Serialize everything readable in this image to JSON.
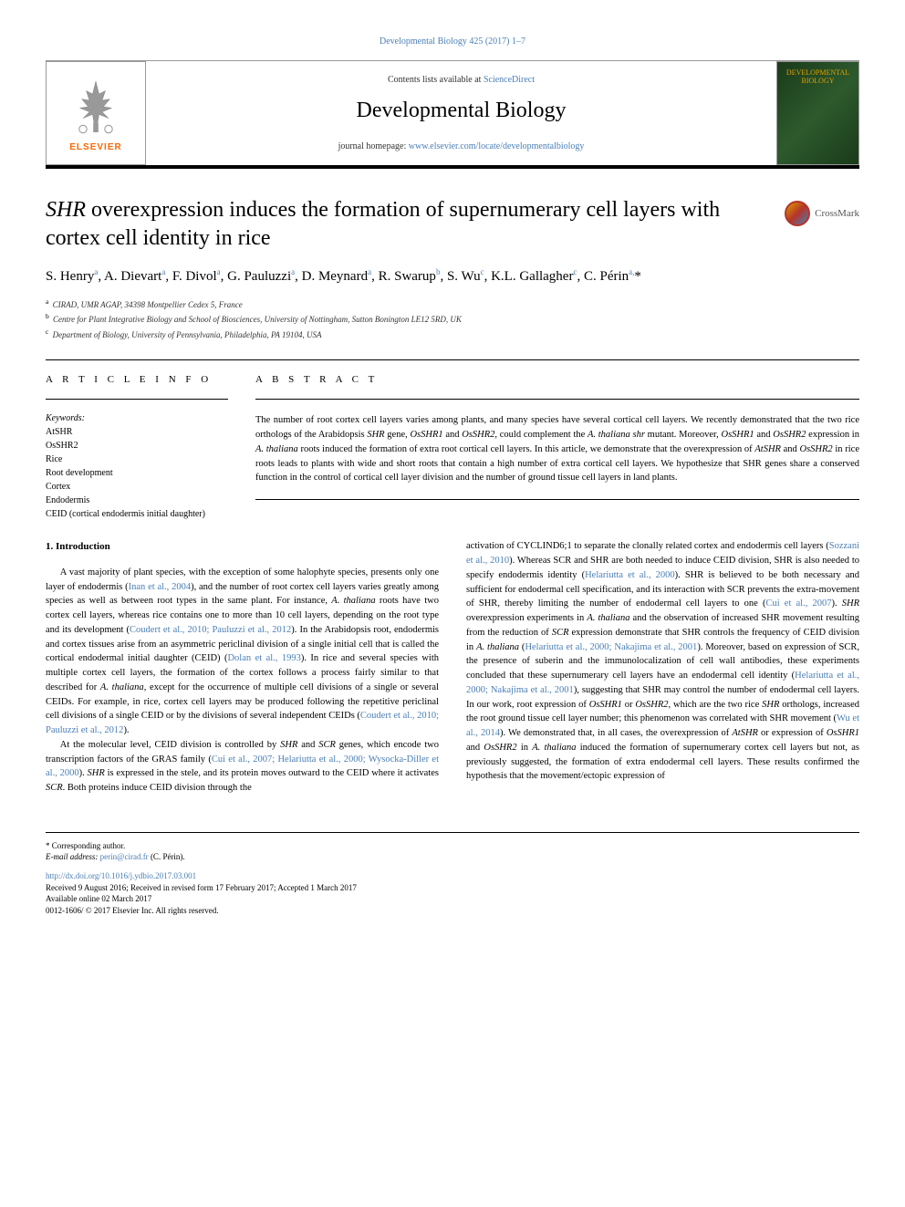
{
  "header": {
    "citation": "Developmental Biology 425 (2017) 1–7",
    "contents_prefix": "Contents lists available at ",
    "contents_link": "ScienceDirect",
    "journal_name": "Developmental Biology",
    "homepage_prefix": "journal homepage: ",
    "homepage_url": "www.elsevier.com/locate/developmentalbiology",
    "publisher": "ELSEVIER",
    "cover_title": "DEVELOPMENTAL BIOLOGY"
  },
  "crossmark": {
    "label": "CrossMark"
  },
  "title": {
    "italic_part": "SHR",
    "rest": " overexpression induces the formation of supernumerary cell layers with cortex cell identity in rice"
  },
  "authors": "S. Henry<sup>a</sup>, A. Dievart<sup>a</sup>, F. Divol<sup>a</sup>, G. Pauluzzi<sup>a</sup>, D. Meynard<sup>a</sup>, R. Swarup<sup>b</sup>, S. Wu<sup>c</sup>, K.L. Gallagher<sup>c</sup>, C. Périn<sup>a,</sup>*",
  "affiliations": [
    {
      "sup": "a",
      "text": "CIRAD, UMR AGAP, 34398 Montpellier Cedex 5, France"
    },
    {
      "sup": "b",
      "text": "Centre for Plant Integrative Biology and School of Biosciences, University of Nottingham, Sutton Bonington LE12 5RD, UK"
    },
    {
      "sup": "c",
      "text": "Department of Biology, University of Pennsylvania, Philadelphia, PA 19104, USA"
    }
  ],
  "article_info": {
    "heading": "A R T I C L E  I N F O",
    "keywords_label": "Keywords:",
    "keywords": [
      "AtSHR",
      "OsSHR2",
      "Rice",
      "Root development",
      "Cortex",
      "Endodermis",
      "CEID (cortical endodermis initial daughter)"
    ]
  },
  "abstract": {
    "heading": "A B S T R A C T",
    "text": "The number of root cortex cell layers varies among plants, and many species have several cortical cell layers. We recently demonstrated that the two rice orthologs of the Arabidopsis <span class=\"italic\">SHR</span> gene, <span class=\"italic\">OsSHR1</span> and <span class=\"italic\">OsSHR2</span>, could complement the <span class=\"italic\">A. thaliana shr</span> mutant. Moreover, <span class=\"italic\">OsSHR1</span> and <span class=\"italic\">OsSHR2</span> expression in <span class=\"italic\">A. thaliana</span> roots induced the formation of extra root cortical cell layers. In this article, we demonstrate that the overexpression of <span class=\"italic\">AtSHR</span> and <span class=\"italic\">OsSHR2</span> in rice roots leads to plants with wide and short roots that contain a high number of extra cortical cell layers. We hypothesize that SHR genes share a conserved function in the control of cortical cell layer division and the number of ground tissue cell layers in land plants."
  },
  "body": {
    "intro_heading": "1. Introduction",
    "col1_p1": "A vast majority of plant species, with the exception of some halophyte species, presents only one layer of endodermis (<span class=\"ref\">Inan et al., 2004</span>), and the number of root cortex cell layers varies greatly among species as well as between root types in the same plant. For instance, <span class=\"italic\">A. thaliana</span> roots have two cortex cell layers, whereas rice contains one to more than 10 cell layers, depending on the root type and its development (<span class=\"ref\">Coudert et al., 2010; Pauluzzi et al., 2012</span>). In the Arabidopsis root, endodermis and cortex tissues arise from an asymmetric periclinal division of a single initial cell that is called the cortical endodermal initial daughter (CEID) (<span class=\"ref\">Dolan et al., 1993</span>). In rice and several species with multiple cortex cell layers, the formation of the cortex follows a process fairly similar to that described for <span class=\"italic\">A. thaliana</span>, except for the occurrence of multiple cell divisions of a single or several CEIDs. For example, in rice, cortex cell layers may be produced following the repetitive periclinal cell divisions of a single CEID or by the divisions of several independent CEIDs (<span class=\"ref\">Coudert et al., 2010; Pauluzzi et al., 2012</span>).",
    "col1_p2": "At the molecular level, CEID division is controlled by <span class=\"italic\">SHR</span> and <span class=\"italic\">SCR</span> genes, which encode two transcription factors of the GRAS family (<span class=\"ref\">Cui et al., 2007; Helariutta et al., 2000; Wysocka-Diller et al., 2000</span>). <span class=\"italic\">SHR</span> is expressed in the stele, and its protein moves outward to the CEID where it activates <span class=\"italic\">SCR</span>. Both proteins induce CEID division through the",
    "col2_p1": "activation of CYCLIND6;1 to separate the clonally related cortex and endodermis cell layers (<span class=\"ref\">Sozzani et al., 2010</span>). Whereas SCR and SHR are both needed to induce CEID division, SHR is also needed to specify endodermis identity (<span class=\"ref\">Helariutta et al., 2000</span>). SHR is believed to be both necessary and sufficient for endodermal cell specification, and its interaction with SCR prevents the extra-movement of SHR, thereby limiting the number of endodermal cell layers to one (<span class=\"ref\">Cui et al., 2007</span>). <span class=\"italic\">SHR</span> overexpression experiments in <span class=\"italic\">A. thaliana</span> and the observation of increased SHR movement resulting from the reduction of <span class=\"italic\">SCR</span> expression demonstrate that SHR controls the frequency of CEID division in <span class=\"italic\">A. thaliana</span> (<span class=\"ref\">Helariutta et al., 2000; Nakajima et al., 2001</span>). Moreover, based on expression of SCR, the presence of suberin and the immunolocalization of cell wall antibodies, these experiments concluded that these supernumerary cell layers have an endodermal cell identity (<span class=\"ref\">Helariutta et al., 2000; Nakajima et al., 2001</span>), suggesting that SHR may control the number of endodermal cell layers. In our work, root expression of <span class=\"italic\">OsSHR1</span> or <span class=\"italic\">OsSHR2</span>, which are the two rice <span class=\"italic\">SHR</span> orthologs, increased the root ground tissue cell layer number; this phenomenon was correlated with SHR movement (<span class=\"ref\">Wu et al., 2014</span>). We demonstrated that, in all cases, the overexpression of <span class=\"italic\">AtSHR</span> or expression of <span class=\"italic\">OsSHR1</span> and <span class=\"italic\">OsSHR2</span> in <span class=\"italic\">A. thaliana</span> induced the formation of supernumerary cortex cell layers but not, as previously suggested, the formation of extra endodermal cell layers. These results confirmed the hypothesis that the movement/ectopic expression of"
  },
  "footer": {
    "corresponding": "* Corresponding author.",
    "email_label": "E-mail address: ",
    "email": "perin@cirad.fr",
    "email_suffix": " (C. Périn).",
    "doi": "http://dx.doi.org/10.1016/j.ydbio.2017.03.001",
    "received": "Received 9 August 2016; Received in revised form 17 February 2017; Accepted 1 March 2017",
    "available": "Available online 02 March 2017",
    "copyright": "0012-1606/ © 2017 Elsevier Inc. All rights reserved."
  }
}
